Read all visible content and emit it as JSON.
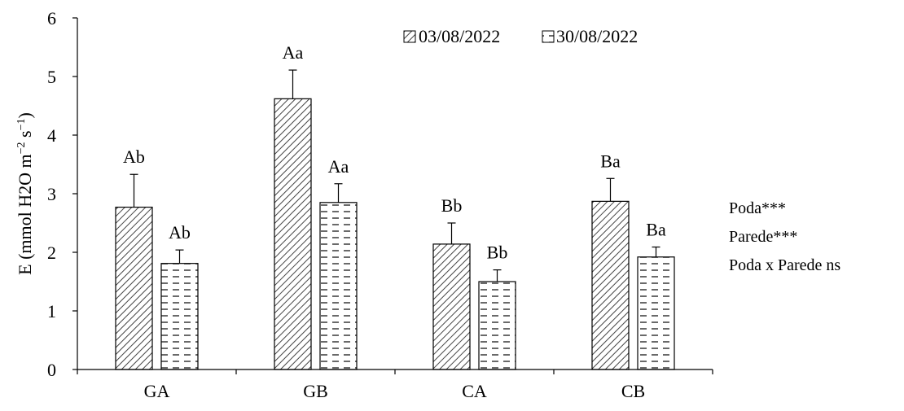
{
  "chart_data": {
    "type": "bar",
    "ylabel_text": "E (mmol H2O m",
    "ylabel_sup1": "−2",
    "ylabel_mid": " s",
    "ylabel_sup2": "−1",
    "ylabel_close": ")",
    "xlabel": "",
    "title": "",
    "ylim": [
      0,
      6
    ],
    "yticks": [
      0,
      1,
      2,
      3,
      4,
      5,
      6
    ],
    "categories": [
      "GA",
      "GB",
      "CA",
      "CB"
    ],
    "series": [
      {
        "name": "03/08/2022",
        "pattern": "diagonal-hatch",
        "values": [
          2.77,
          4.62,
          2.14,
          2.87
        ],
        "errors": [
          0.56,
          0.49,
          0.36,
          0.39
        ],
        "labels": [
          "Ab",
          "Aa",
          "Bb",
          "Ba"
        ]
      },
      {
        "name": "30/08/2022",
        "pattern": "dashed-horizontal",
        "values": [
          1.81,
          2.85,
          1.5,
          1.92
        ],
        "errors": [
          0.23,
          0.32,
          0.2,
          0.17
        ],
        "labels": [
          "Ab",
          "Aa",
          "Bb",
          "Ba"
        ]
      }
    ],
    "legend_position": "top-right",
    "grid": false,
    "colors": {
      "stroke": "#000000",
      "hatch": "#444444",
      "background": "#ffffff"
    }
  },
  "stats_annotations": [
    "Poda***",
    "Parede***",
    "Poda x Parede ns"
  ]
}
